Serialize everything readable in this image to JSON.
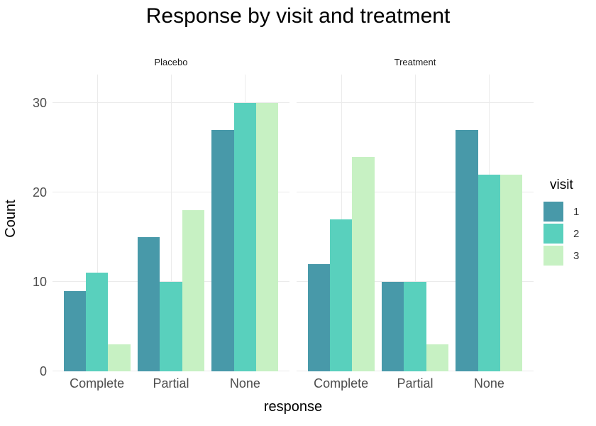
{
  "chart_data": {
    "type": "bar",
    "title": "Response by visit and treatment",
    "xlabel": "response",
    "ylabel": "Count",
    "categories": [
      "Complete",
      "Partial",
      "None"
    ],
    "yticks": [
      0,
      10,
      20,
      30
    ],
    "ylim": [
      0,
      33
    ],
    "grid": true,
    "legend": {
      "title": "visit",
      "entries": [
        "1",
        "2",
        "3"
      ],
      "position": "right"
    },
    "palette": [
      "#4899a9",
      "#59d0bd",
      "#c7f1c3"
    ],
    "colors": {
      "background": "#ffffff",
      "gridline": "#ebebeb",
      "tick_text": "#4d4d4d",
      "text": "#000000"
    },
    "facets": [
      {
        "label": "Placebo",
        "series": [
          {
            "name": "1",
            "values": [
              9,
              15,
              27
            ]
          },
          {
            "name": "2",
            "values": [
              11,
              10,
              30
            ]
          },
          {
            "name": "3",
            "values": [
              3,
              18,
              30
            ]
          }
        ]
      },
      {
        "label": "Treatment",
        "series": [
          {
            "name": "1",
            "values": [
              12,
              10,
              27
            ]
          },
          {
            "name": "2",
            "values": [
              17,
              10,
              22
            ]
          },
          {
            "name": "3",
            "values": [
              24,
              3,
              22
            ]
          }
        ]
      }
    ]
  }
}
